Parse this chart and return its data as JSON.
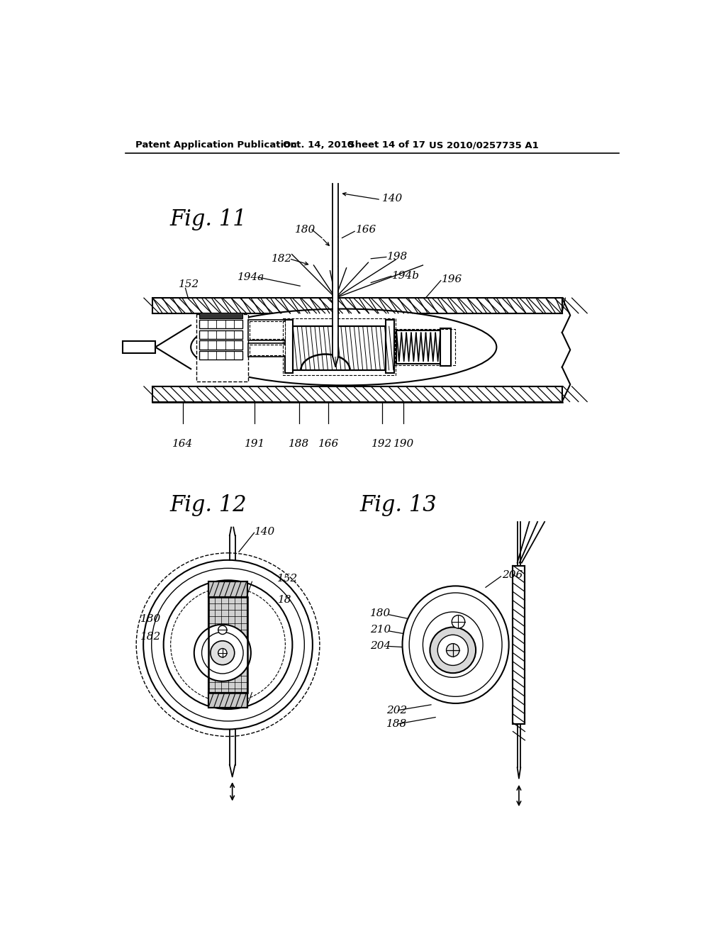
{
  "bg_color": "#ffffff",
  "header_text": "Patent Application Publication",
  "header_date": "Oct. 14, 2010",
  "header_sheet": "Sheet 14 of 17",
  "header_patent": "US 2010/0257735 A1",
  "fig11_title": "Fig. 11",
  "fig12_title": "Fig. 12",
  "fig13_title": "Fig. 13"
}
